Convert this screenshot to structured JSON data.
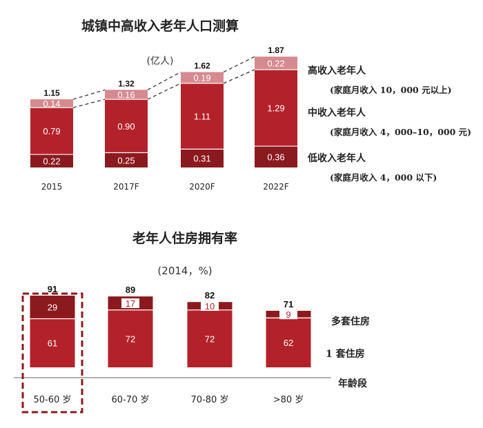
{
  "chart_data": [
    {
      "type": "bar",
      "stacked": true,
      "title": "城镇中高收入老年人口测算",
      "unit": "(亿人)",
      "categories": [
        "2015",
        "2017F",
        "2020F",
        "2022F"
      ],
      "totals": [
        "1.15",
        "1.32",
        "1.62",
        "1.87"
      ],
      "series": [
        {
          "name": "低收入老年人",
          "note": "(家庭月收入 4，000 以下)",
          "values": [
            0.22,
            0.25,
            0.31,
            0.36
          ],
          "labels": [
            "0.22",
            "0.25",
            "0.31",
            "0.36"
          ],
          "color": "#8b1a1e"
        },
        {
          "name": "中收入老年人",
          "note": "(家庭月收入 4，000–10，000 元)",
          "values": [
            0.79,
            0.9,
            1.11,
            1.29
          ],
          "labels": [
            "0.79",
            "0.90",
            "1.11",
            "1.29"
          ],
          "color": "#b3222a"
        },
        {
          "name": "高收入老年人",
          "note": "(家庭月收入 10，000 元以上)",
          "values": [
            0.14,
            0.16,
            0.19,
            0.22
          ],
          "labels": [
            "0.14",
            "0.16",
            "0.19",
            "0.22"
          ],
          "color": "#d58a8f"
        }
      ],
      "ylim": [
        0,
        1.87
      ],
      "grid": false
    },
    {
      "type": "bar",
      "stacked": true,
      "title": "老年人住房拥有率",
      "unit": "(2014，%)",
      "xlabel": "年龄段",
      "categories": [
        "50-60 岁",
        "60-70 岁",
        "70-80 岁",
        ">80 岁"
      ],
      "totals": [
        "91",
        "89",
        "82",
        "71"
      ],
      "highlight_category": "50-60 岁",
      "series": [
        {
          "name": "1 套住房",
          "values": [
            61,
            72,
            72,
            62
          ],
          "labels": [
            "61",
            "72",
            "72",
            "62"
          ],
          "color": "#b3222a"
        },
        {
          "name": "多套住房",
          "values": [
            29,
            17,
            10,
            9
          ],
          "labels": [
            "29",
            "17",
            "10",
            "9"
          ],
          "color": "#8b1a1e"
        }
      ],
      "ylim": [
        0,
        91
      ],
      "grid": false
    }
  ]
}
